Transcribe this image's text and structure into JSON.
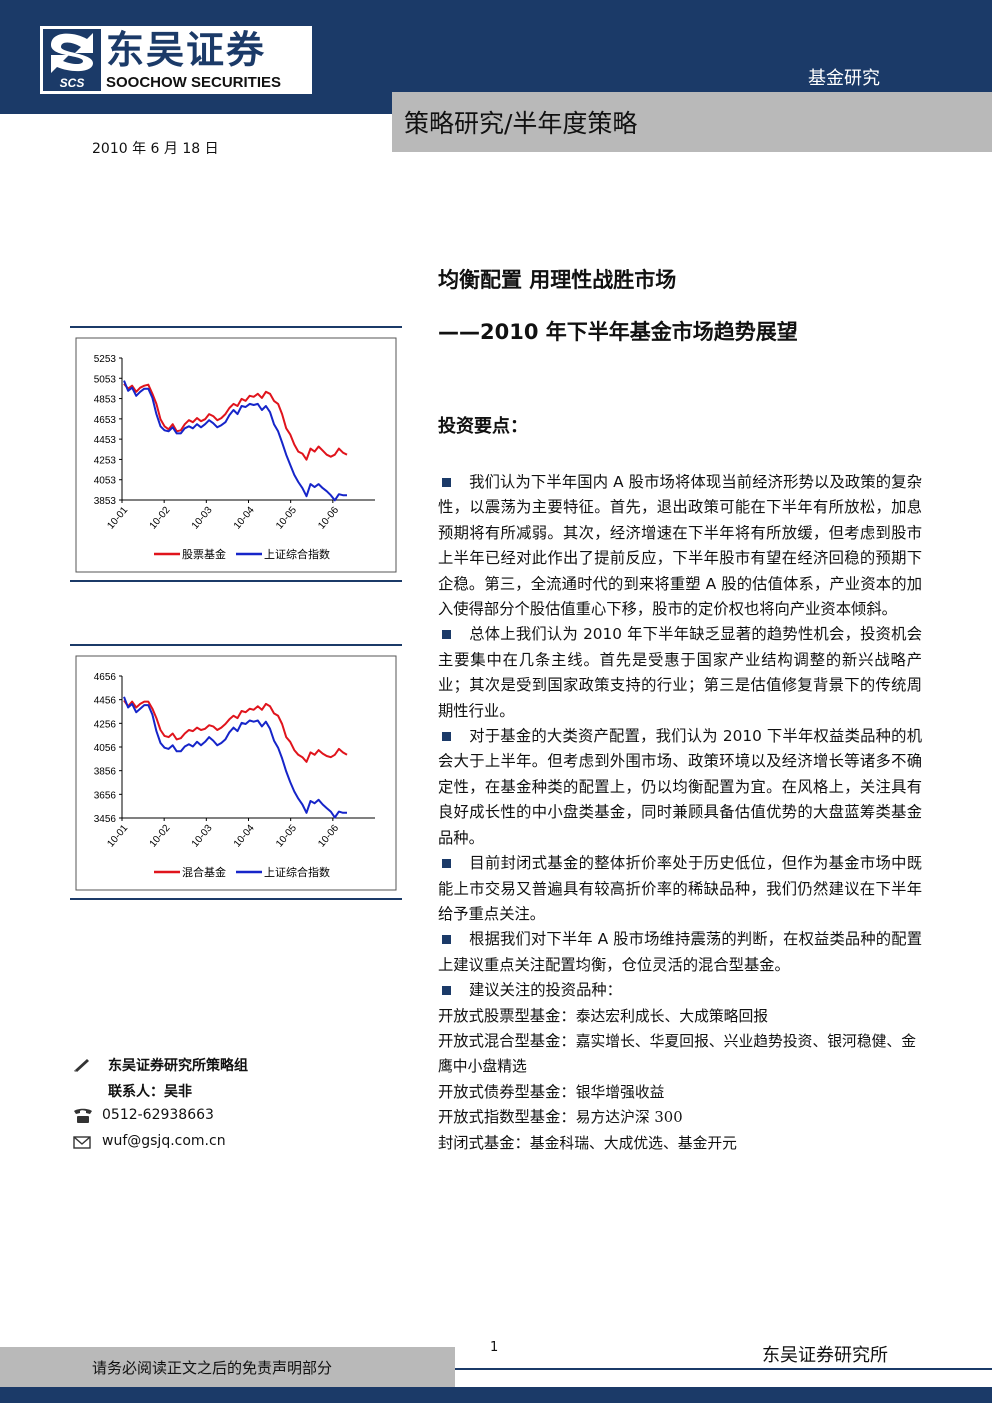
{
  "header": {
    "logo_cn": "东吴证券",
    "logo_en": "SOOCHOW SECURITIES",
    "logo_mark_text": "SCS",
    "section": "基金研究",
    "category": "策略研究/半年度策略",
    "date": "2010 年 6 月 18 日",
    "colors": {
      "navy": "#1b3a68",
      "gray": "#b9b9b9"
    }
  },
  "title": {
    "main": "均衡配置 用理性战胜市场",
    "sub": "——2010 年下半年基金市场趋势展望"
  },
  "key_points": {
    "heading": "投资要点：",
    "paragraphs": [
      "我们认为下半年国内 A 股市场将体现当前经济形势以及政策的复杂性，以震荡为主要特征。首先，退出政策可能在下半年有所放松，加息预期将有所减弱。其次，经济增速在下半年将有所放缓，但考虑到股市上半年已经对此作出了提前反应，下半年股市有望在经济回稳的预期下企稳。第三，全流通时代的到来将重塑 A 股的估值体系，产业资本的加入使得部分个股估值重心下移，股市的定价权也将向产业资本倾斜。",
      "总体上我们认为 2010 年下半年缺乏显著的趋势性机会，投资机会主要集中在几条主线。首先是受惠于国家产业结构调整的新兴战略产业；其次是受到国家政策支持的行业；第三是估值修复背景下的传统周期性行业。",
      "对于基金的大类资产配置，我们认为 2010 下半年权益类品种的机会大于上半年。但考虑到外围市场、政策环境以及经济增长等诸多不确定性，在基金种类的配置上，仍以均衡配置为宜。在风格上，关注具有良好成长性的中小盘类基金，同时兼顾具备估值优势的大盘蓝筹类基金品种。",
      "目前封闭式基金的整体折价率处于历史低位，但作为基金市场中既能上市交易又普遍具有较高折价率的稀缺品种，我们仍然建议在下半年给予重点关注。",
      "根据我们对下半年 A 股市场维持震荡的判断，在权益类品种的配置上建议重点关注配置均衡，仓位灵活的混合型基金。",
      "建议关注的投资品种："
    ],
    "recommendations": [
      {
        "label": "开放式股票型基金：",
        "funds": "泰达宏利成长、大成策略回报"
      },
      {
        "label": "开放式混合型基金：",
        "funds": "嘉实增长、华夏回报、兴业趋势投资、银河稳健、金鹰中小盘精选"
      },
      {
        "label": "开放式债券型基金：",
        "funds": "银华增强收益"
      },
      {
        "label": "开放式指数型基金：",
        "funds": "易方达沪深 300"
      },
      {
        "label": "封闭式基金：",
        "funds": "基金科瑞、大成优选、基金开元"
      }
    ]
  },
  "contact": {
    "team": "东吴证券研究所策略组",
    "person": "联系人：吴非",
    "phone": "0512-62938663",
    "email": "wuf@gsjq.com.cn",
    "icons": [
      "pen-icon",
      "phone-icon",
      "envelope-icon"
    ]
  },
  "footer": {
    "disclaimer": "请务必阅读正文之后的免责声明部分",
    "page": "1",
    "institute": "东吴证券研究所"
  },
  "chart_data": [
    {
      "type": "line",
      "x_ticks": [
        "10-01",
        "10-02",
        "10-03",
        "10-04",
        "10-05",
        "10-06"
      ],
      "y_ticks": [
        "5253",
        "5053",
        "4853",
        "4653",
        "4453",
        "4253",
        "4053",
        "3853"
      ],
      "ylim": [
        3853,
        5253
      ],
      "grid": false,
      "legend_position": "bottom",
      "series": [
        {
          "name": "股票基金",
          "color": "#e0141c",
          "values": [
            5000,
            4950,
            4980,
            4920,
            4960,
            4980,
            4990,
            4900,
            4800,
            4650,
            4580,
            4550,
            4600,
            4530,
            4540,
            4600,
            4640,
            4620,
            4660,
            4630,
            4650,
            4700,
            4680,
            4640,
            4660,
            4700,
            4760,
            4800,
            4780,
            4850,
            4830,
            4880,
            4870,
            4900,
            4860,
            4920,
            4900,
            4830,
            4800,
            4700,
            4560,
            4500,
            4400,
            4330,
            4310,
            4250,
            4360,
            4330,
            4380,
            4340,
            4300,
            4280,
            4300,
            4360,
            4320,
            4300
          ]
        },
        {
          "name": "上证综合指数",
          "color": "#1625c9",
          "values": [
            5030,
            4930,
            4960,
            4880,
            4920,
            4950,
            4950,
            4860,
            4700,
            4580,
            4540,
            4530,
            4570,
            4510,
            4510,
            4560,
            4580,
            4560,
            4600,
            4570,
            4600,
            4640,
            4610,
            4570,
            4590,
            4620,
            4690,
            4740,
            4700,
            4780,
            4770,
            4800,
            4790,
            4800,
            4740,
            4780,
            4720,
            4600,
            4530,
            4420,
            4300,
            4200,
            4100,
            4030,
            3970,
            3890,
            4010,
            3980,
            4010,
            3970,
            3940,
            3900,
            3850,
            3910,
            3900,
            3900
          ]
        }
      ]
    },
    {
      "type": "line",
      "x_ticks": [
        "10-01",
        "10-02",
        "10-03",
        "10-04",
        "10-05",
        "10-06"
      ],
      "y_ticks": [
        "4656",
        "4456",
        "4256",
        "4056",
        "3856",
        "3656",
        "3456"
      ],
      "ylim": [
        3456,
        4656
      ],
      "grid": false,
      "legend_position": "bottom",
      "series": [
        {
          "name": "混合基金",
          "color": "#e0141c",
          "values": [
            4450,
            4400,
            4440,
            4390,
            4420,
            4440,
            4440,
            4380,
            4300,
            4200,
            4150,
            4140,
            4170,
            4120,
            4130,
            4170,
            4200,
            4190,
            4220,
            4200,
            4210,
            4240,
            4230,
            4200,
            4220,
            4250,
            4290,
            4320,
            4300,
            4360,
            4350,
            4380,
            4370,
            4400,
            4370,
            4420,
            4400,
            4340,
            4320,
            4250,
            4140,
            4100,
            4030,
            3990,
            3970,
            3930,
            4010,
            3990,
            4030,
            4000,
            3980,
            3970,
            3990,
            4040,
            4010,
            3990
          ]
        },
        {
          "name": "上证综合指数",
          "color": "#1625c9",
          "values": [
            4480,
            4390,
            4420,
            4350,
            4380,
            4410,
            4410,
            4330,
            4190,
            4090,
            4050,
            4040,
            4070,
            4020,
            4020,
            4060,
            4080,
            4060,
            4100,
            4070,
            4100,
            4140,
            4110,
            4070,
            4090,
            4120,
            4180,
            4220,
            4190,
            4260,
            4250,
            4280,
            4270,
            4280,
            4230,
            4270,
            4210,
            4110,
            4050,
            3960,
            3850,
            3760,
            3680,
            3620,
            3570,
            3500,
            3600,
            3580,
            3610,
            3570,
            3540,
            3510,
            3460,
            3510,
            3500,
            3500
          ]
        }
      ]
    }
  ]
}
